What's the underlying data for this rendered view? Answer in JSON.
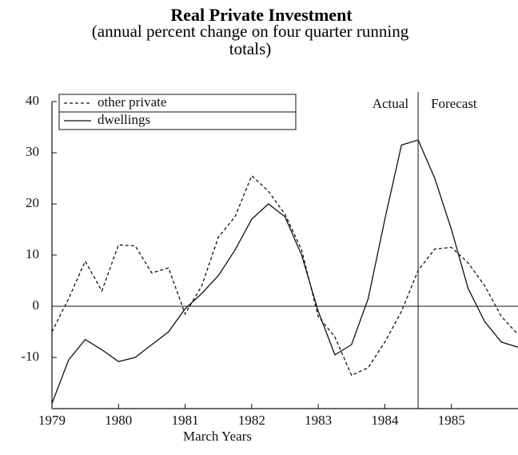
{
  "chart_data": {
    "type": "line",
    "title": "Real Private Investment",
    "subtitle": "(annual percent change on four quarter running totals)",
    "x_label": "March Years",
    "annotations": [
      "Actual",
      "Forecast"
    ],
    "forecast_start": 1984.5,
    "x": [
      1979,
      1979.25,
      1979.5,
      1979.75,
      1980,
      1980.25,
      1980.5,
      1980.75,
      1981,
      1981.25,
      1981.5,
      1981.75,
      1982,
      1982.25,
      1982.5,
      1982.75,
      1983,
      1983.25,
      1983.5,
      1983.75,
      1984,
      1984.25,
      1984.5,
      1984.75,
      1985,
      1985.25,
      1985.5,
      1985.75,
      1986
    ],
    "series": [
      {
        "name": "other private",
        "color": "#111111",
        "dashed": true,
        "values": [
          -5,
          1.5,
          8.8,
          3,
          12,
          11.8,
          6.5,
          7.5,
          -1.5,
          4,
          13.5,
          17.5,
          25.5,
          22.5,
          18,
          11,
          -2,
          -6,
          -13.5,
          -12,
          -7,
          -1,
          7,
          11.2,
          11.5,
          8.5,
          4,
          -2,
          -5.5
        ]
      },
      {
        "name": "dwellings",
        "color": "#111111",
        "dashed": false,
        "values": [
          -19,
          -10.5,
          -6.5,
          -8.5,
          -10.8,
          -10,
          -7.5,
          -5,
          -0.5,
          2.5,
          6,
          11,
          17,
          20,
          17.5,
          10,
          -1,
          -9.5,
          -7.5,
          1.5,
          17,
          31.5,
          32.5,
          25,
          15,
          3.5,
          -3,
          -7,
          -8
        ]
      }
    ],
    "xlim": [
      1979,
      1986
    ],
    "xticks": [
      1979,
      1980,
      1981,
      1982,
      1983,
      1984,
      1985
    ],
    "ylim": [
      -20,
      40
    ],
    "yticks": [
      -10,
      0,
      10,
      20,
      30,
      40
    ],
    "zero_line": true
  }
}
